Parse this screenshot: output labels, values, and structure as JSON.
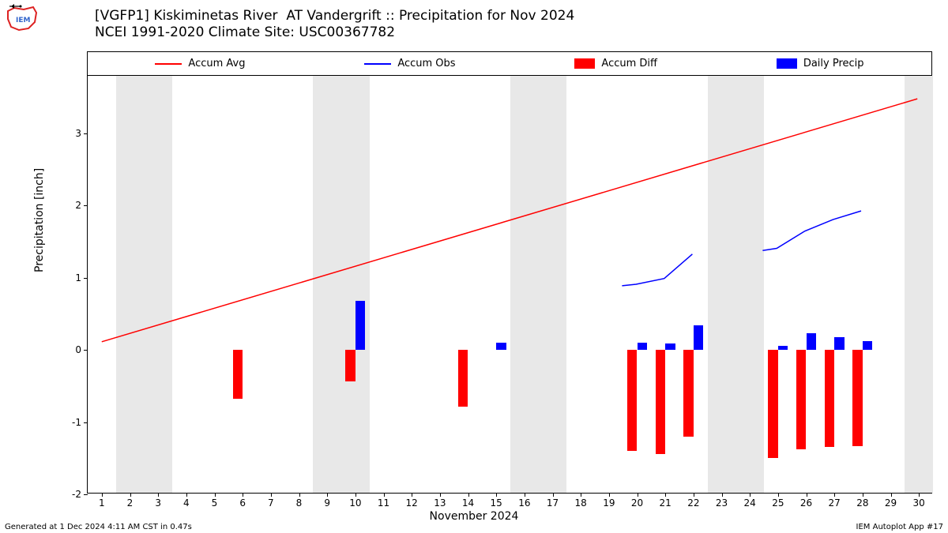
{
  "title_line1": "[VGFP1] Kiskiminetas River  AT Vandergrift :: Precipitation for Nov 2024",
  "title_line2": "NCEI 1991-2020 Climate Site: USC00367782",
  "ylabel": "Precipitation [inch]",
  "xlabel": "November 2024",
  "footer_left": "Generated at 1 Dec 2024 4:11 AM CST in 0.47s",
  "footer_right": "IEM Autoplot App #17",
  "legend": {
    "items": [
      {
        "label": "Accum Avg",
        "type": "line",
        "color": "#ff0000"
      },
      {
        "label": "Accum Obs",
        "type": "line",
        "color": "#0000ff"
      },
      {
        "label": "Accum Diff",
        "type": "block",
        "color": "#ff0000"
      },
      {
        "label": "Daily Precip",
        "type": "block",
        "color": "#0000ff"
      }
    ]
  },
  "chart": {
    "type": "bar+line",
    "x_days": [
      1,
      2,
      3,
      4,
      5,
      6,
      7,
      8,
      9,
      10,
      11,
      12,
      13,
      14,
      15,
      16,
      17,
      18,
      19,
      20,
      21,
      22,
      23,
      24,
      25,
      26,
      27,
      28,
      29,
      30
    ],
    "xlim": [
      0.5,
      30.5
    ],
    "ylim": [
      -2.0,
      3.8
    ],
    "yticks": [
      -2,
      -1,
      0,
      1,
      2,
      3
    ],
    "background_color": "#ffffff",
    "weekend_color": "#e8e8e8",
    "weekend_bands": [
      [
        1.5,
        3.5
      ],
      [
        8.5,
        10.5
      ],
      [
        15.5,
        17.5
      ],
      [
        22.5,
        24.5
      ],
      [
        29.5,
        30.5
      ]
    ],
    "accum_avg": {
      "color": "#ff0000",
      "line_width": 1.5,
      "points": [
        [
          1,
          0.1
        ],
        [
          30,
          3.48
        ]
      ]
    },
    "accum_obs": {
      "color": "#0000ff",
      "line_width": 1.5,
      "segments": [
        [
          [
            19.5,
            0.88
          ],
          [
            20,
            0.9
          ],
          [
            21,
            0.98
          ],
          [
            22,
            1.32
          ]
        ],
        [
          [
            24.5,
            1.37
          ],
          [
            25,
            1.4
          ],
          [
            26,
            1.64
          ],
          [
            27,
            1.8
          ],
          [
            28,
            1.92
          ]
        ]
      ]
    },
    "daily_precip": {
      "color": "#0000ff",
      "bar_width": 0.35,
      "bar_offset": 0.18,
      "values": {
        "10": 0.68,
        "15": 0.1,
        "20": 0.1,
        "21": 0.09,
        "22": 0.34,
        "25": 0.06,
        "26": 0.23,
        "27": 0.18,
        "28": 0.12
      }
    },
    "accum_diff": {
      "color": "#ff0000",
      "bar_width": 0.35,
      "bar_offset": -0.18,
      "values": {
        "6": -0.68,
        "10": -0.44,
        "14": -0.78,
        "20": -1.4,
        "21": -1.44,
        "22": -1.2,
        "25": -1.5,
        "26": -1.38,
        "27": -1.34,
        "28": -1.33
      }
    }
  },
  "logo_colors": {
    "outline": "#d22",
    "fill": "#fff",
    "accent": "#36c"
  }
}
